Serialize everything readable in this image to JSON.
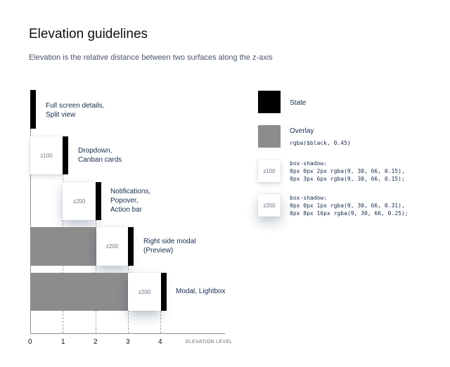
{
  "header": {
    "title": "Elevation guidelines",
    "subtitle": "Elevation is the relative distance between two surfaces along the z-axis"
  },
  "diagram": {
    "layers": [
      {
        "label": "Full screen details,\nSplit view"
      },
      {
        "label": "Dropdown,\nCanban cards",
        "card": "z100"
      },
      {
        "label": "Notifications,\nPopover,\nAction bar",
        "card": "z200"
      },
      {
        "label": "Right side modal\n(Preview)",
        "card": "z200"
      },
      {
        "label": "Modal, Lightbox",
        "card": "z200"
      }
    ],
    "x_ticks": [
      "0",
      "1",
      "2",
      "3",
      "4"
    ],
    "x_axis_label": "ELEVATION LEVEL"
  },
  "legend": {
    "state": {
      "label": "State",
      "color": "#000000"
    },
    "overlay": {
      "label": "Overlay",
      "value": "rgba($black, 0.45)",
      "color": "#8c8c8c"
    },
    "z100": {
      "card": "z100",
      "value": "box-shadow:\n0px 0px 2px rgba(9, 30, 66, 0.15),\n0px 3px 6px rgba(9, 30, 66, 0.15);"
    },
    "z200": {
      "card": "z200",
      "value": "box-shadow:\n0px 0px 1px rgba(9, 30, 66, 0.31),\n0px 8px 16px rgba(9, 30, 66, 0.25);"
    }
  }
}
